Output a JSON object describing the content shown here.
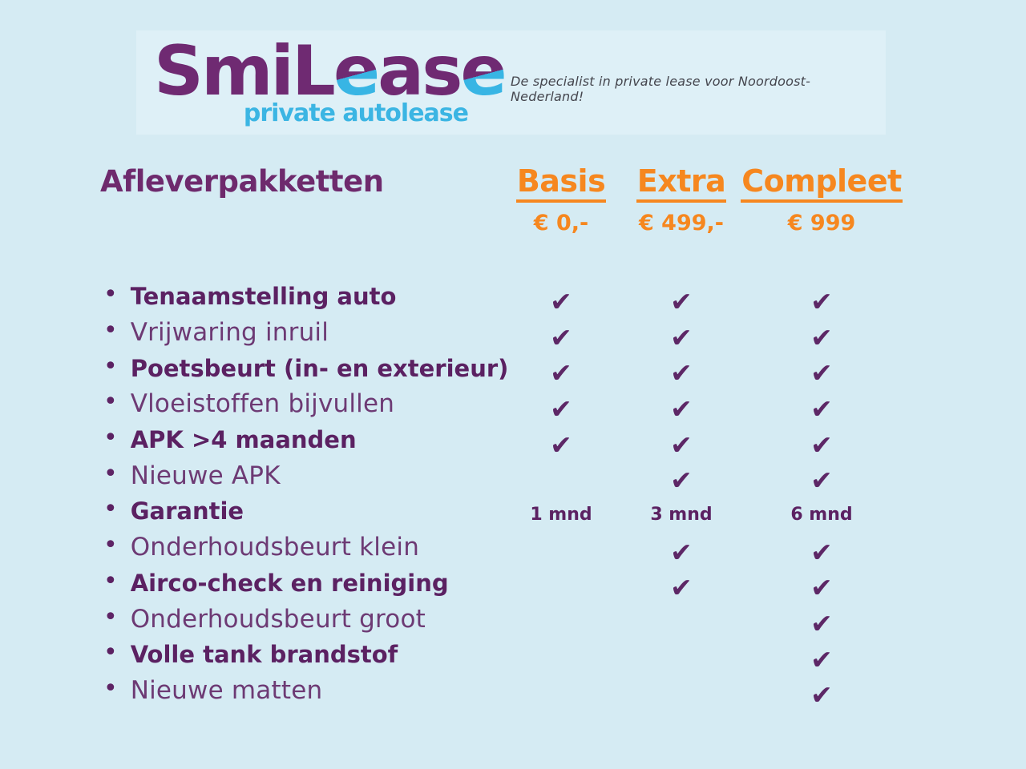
{
  "brand": {
    "logo_part1": "SmiL",
    "logo_e1": "e",
    "logo_part2": "as",
    "logo_e2": "e",
    "logo_sub": "private autolease",
    "tagline": "De specialist in private lease voor Noordoost-Nederland!"
  },
  "icons": {
    "check": "✔",
    "bullet": "•"
  },
  "colors": {
    "background": "#d5ebf3",
    "band": "#def0f7",
    "purple": "#6f2a72",
    "text_purple_bold": "#5b2162",
    "text_purple_regular": "#6d3a74",
    "orange": "#f6871f",
    "light_blue": "#3bb5e3",
    "tagline_gray": "#45464e"
  },
  "chart_data": {
    "type": "table",
    "title": "Afleverpakketten",
    "columns": [
      "Basis",
      "Extra",
      "Compleet"
    ],
    "prices": [
      "€ 0,-",
      "€ 499,-",
      "€ 999"
    ],
    "rows": [
      {
        "label": "Tenaamstelling auto",
        "bold": true,
        "values": [
          true,
          true,
          true
        ]
      },
      {
        "label": "Vrijwaring inruil",
        "bold": false,
        "values": [
          true,
          true,
          true
        ]
      },
      {
        "label": "Poetsbeurt (in- en exterieur)",
        "bold": true,
        "values": [
          true,
          true,
          true
        ]
      },
      {
        "label": "Vloeistoffen bijvullen",
        "bold": false,
        "values": [
          true,
          true,
          true
        ]
      },
      {
        "label": "APK >4 maanden",
        "bold": true,
        "values": [
          true,
          true,
          true
        ]
      },
      {
        "label": "Nieuwe APK",
        "bold": false,
        "values": [
          false,
          true,
          true
        ]
      },
      {
        "label": "Garantie",
        "bold": true,
        "values": [
          "1 mnd",
          "3 mnd",
          "6 mnd"
        ]
      },
      {
        "label": "Onderhoudsbeurt klein",
        "bold": false,
        "values": [
          false,
          true,
          true
        ]
      },
      {
        "label": "Airco-check en reiniging",
        "bold": true,
        "values": [
          false,
          true,
          true
        ]
      },
      {
        "label": "Onderhoudsbeurt groot",
        "bold": false,
        "values": [
          false,
          false,
          true
        ]
      },
      {
        "label": "Volle tank brandstof",
        "bold": true,
        "values": [
          false,
          false,
          true
        ]
      },
      {
        "label": "Nieuwe matten",
        "bold": false,
        "values": [
          false,
          false,
          true
        ]
      }
    ]
  }
}
